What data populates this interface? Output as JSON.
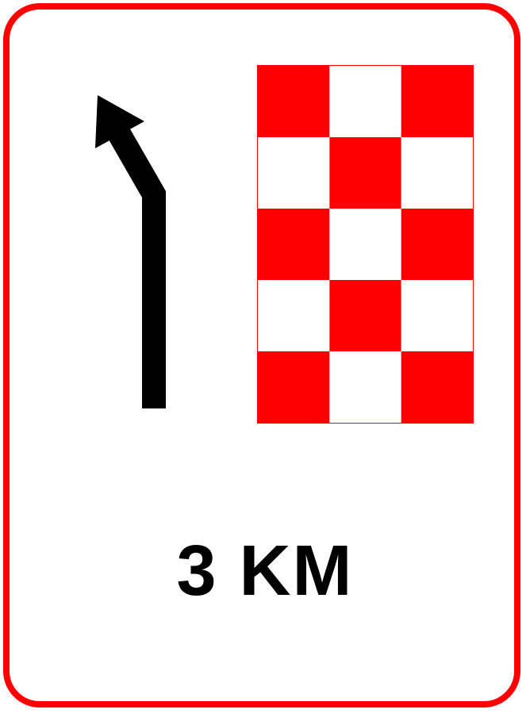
{
  "sign": {
    "type": "road-sign",
    "border_color": "#ff0000",
    "background_color": "#ffffff",
    "distance_text": "3 KM",
    "arrow": {
      "icon": "left-turn-arrow-icon",
      "color": "#000000"
    },
    "checkerboard": {
      "color_primary": "#ff0000",
      "color_secondary": "#ffffff",
      "rows": 5,
      "cols": 3
    }
  }
}
